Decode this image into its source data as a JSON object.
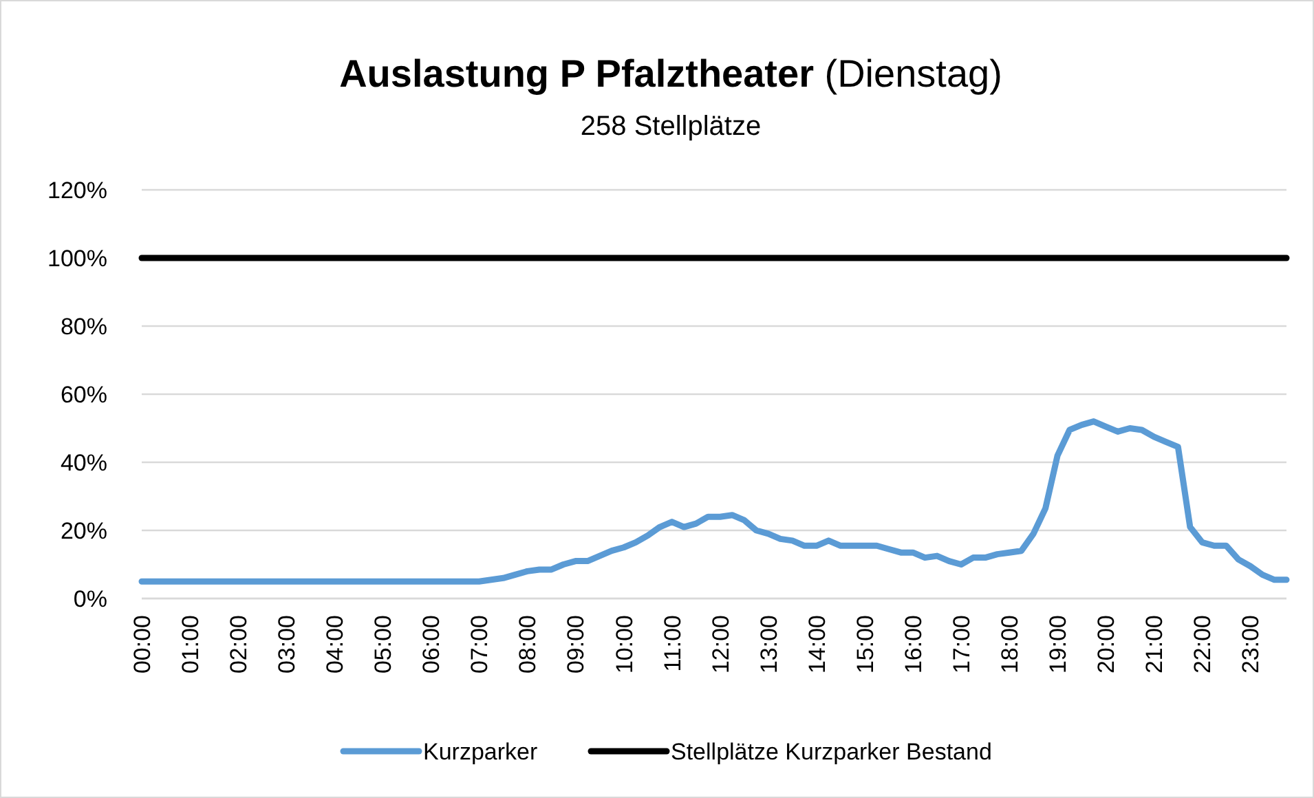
{
  "chart_data": {
    "type": "line",
    "title": "Auslastung P Pfalztheater (Dienstag)",
    "subtitle": "258 Stellplätze",
    "categories": [
      "00:00",
      null,
      null,
      null,
      "01:00",
      null,
      null,
      null,
      "02:00",
      null,
      null,
      null,
      "03:00",
      null,
      null,
      null,
      "04:00",
      null,
      null,
      null,
      "05:00",
      null,
      null,
      null,
      "06:00",
      null,
      null,
      null,
      "07:00",
      null,
      null,
      null,
      "08:00",
      null,
      null,
      null,
      "09:00",
      null,
      null,
      null,
      "10:00",
      null,
      null,
      null,
      "11:00",
      null,
      null,
      null,
      "12:00",
      null,
      null,
      null,
      "13:00",
      null,
      null,
      null,
      "14:00",
      null,
      null,
      null,
      "15:00",
      null,
      null,
      null,
      "16:00",
      null,
      null,
      null,
      "17:00",
      null,
      null,
      null,
      "18:00",
      null,
      null,
      null,
      "19:00",
      null,
      null,
      null,
      "20:00",
      null,
      null,
      null,
      "21:00",
      null,
      null,
      null,
      "22:00",
      null,
      null,
      null,
      "23:00",
      null,
      null,
      null
    ],
    "series": [
      {
        "name": "Kurzparker",
        "color": "#5b9bd5",
        "values": [
          5,
          5,
          5,
          5,
          5,
          5,
          5,
          5,
          5,
          5,
          5,
          5,
          5,
          5,
          5,
          5,
          5,
          5,
          5,
          5,
          5,
          5,
          5,
          5,
          5,
          5,
          5,
          5,
          5,
          5.5,
          6,
          7,
          8,
          8.5,
          8.5,
          10,
          11,
          11,
          12.5,
          14,
          15,
          16.5,
          18.5,
          21,
          22.5,
          21,
          22,
          24,
          24,
          24.5,
          23,
          20,
          19,
          17.5,
          17,
          15.5,
          15.5,
          17,
          15.5,
          15.5,
          15.5,
          15.5,
          14.5,
          13.5,
          13.5,
          12,
          12.5,
          11,
          10,
          12,
          12,
          13,
          13.5,
          14,
          19,
          26.5,
          42,
          49.5,
          51,
          52,
          50.5,
          49,
          50,
          49.5,
          47.5,
          46,
          44.5,
          21,
          16.5,
          15.5,
          15.5,
          11.5,
          9.5,
          7,
          5.5,
          5.5
        ]
      },
      {
        "name": "Stellplätze Kurzparker Bestand",
        "color": "#000000",
        "values": [
          100,
          100,
          100,
          100,
          100,
          100,
          100,
          100,
          100,
          100,
          100,
          100,
          100,
          100,
          100,
          100,
          100,
          100,
          100,
          100,
          100,
          100,
          100,
          100,
          100,
          100,
          100,
          100,
          100,
          100,
          100,
          100,
          100,
          100,
          100,
          100,
          100,
          100,
          100,
          100,
          100,
          100,
          100,
          100,
          100,
          100,
          100,
          100,
          100,
          100,
          100,
          100,
          100,
          100,
          100,
          100,
          100,
          100,
          100,
          100,
          100,
          100,
          100,
          100,
          100,
          100,
          100,
          100,
          100,
          100,
          100,
          100,
          100,
          100,
          100,
          100,
          100,
          100,
          100,
          100,
          100,
          100,
          100,
          100,
          100,
          100,
          100,
          100,
          100,
          100,
          100,
          100,
          100,
          100,
          100,
          100
        ]
      }
    ],
    "ylim": [
      0,
      120
    ],
    "yticks": [
      {
        "value": 0,
        "label": "0%"
      },
      {
        "value": 20,
        "label": "20%"
      },
      {
        "value": 40,
        "label": "40%"
      },
      {
        "value": 60,
        "label": "60%"
      },
      {
        "value": 80,
        "label": "80%"
      },
      {
        "value": 100,
        "label": "100%"
      },
      {
        "value": 120,
        "label": "120%"
      }
    ],
    "grid": "y",
    "legend": "bottom",
    "marker": "none",
    "line_style": "solid"
  }
}
